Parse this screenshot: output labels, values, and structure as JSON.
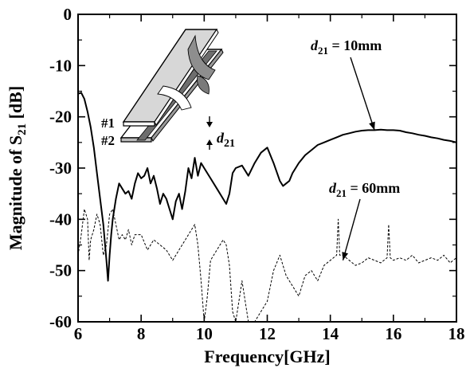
{
  "chart_data": {
    "type": "line",
    "xlabel": "Frequency[GHz]",
    "ylabel_parts": {
      "main": "Magnitude of S",
      "sub": "21",
      "unit": " [dB]"
    },
    "xlim": [
      6,
      18
    ],
    "ylim": [
      -60,
      0
    ],
    "xticks": [
      6,
      8,
      10,
      12,
      14,
      16,
      18
    ],
    "yticks": [
      0,
      -10,
      -20,
      -30,
      -40,
      -50,
      -60
    ],
    "grid": false,
    "annotations": [
      {
        "var": "d",
        "sub": "21",
        "text": " = 10mm",
        "arrow_to": [
          15.4,
          -22.6
        ]
      },
      {
        "var": "d",
        "sub": "21",
        "text": " = 60mm",
        "arrow_to": [
          14.4,
          -48.0
        ]
      }
    ],
    "inset": {
      "labels": [
        "#1",
        "#2"
      ],
      "dimension": {
        "var": "d",
        "sub": "21"
      }
    },
    "series": [
      {
        "style": "solid",
        "x": [
          6.0,
          6.1,
          6.2,
          6.3,
          6.4,
          6.5,
          6.6,
          6.7,
          6.8,
          6.9,
          6.95,
          7.0,
          7.05,
          7.1,
          7.2,
          7.3,
          7.4,
          7.5,
          7.6,
          7.7,
          7.8,
          7.9,
          8.0,
          8.1,
          8.2,
          8.3,
          8.4,
          8.5,
          8.6,
          8.7,
          8.8,
          8.9,
          9.0,
          9.1,
          9.2,
          9.3,
          9.4,
          9.5,
          9.6,
          9.7,
          9.8,
          9.9,
          10.0,
          10.2,
          10.4,
          10.6,
          10.7,
          10.8,
          10.9,
          11.0,
          11.2,
          11.4,
          11.6,
          11.8,
          12.0,
          12.2,
          12.4,
          12.5,
          12.6,
          12.7,
          12.8,
          13.0,
          13.2,
          13.4,
          13.6,
          13.8,
          14.0,
          14.2,
          14.4,
          14.6,
          14.8,
          15.0,
          15.2,
          15.4,
          15.6,
          15.8,
          16.0,
          16.2,
          16.4,
          16.6,
          16.8,
          17.0,
          17.2,
          17.4,
          17.6,
          17.8,
          18.0
        ],
        "y": [
          -15.5,
          -15.3,
          -16.5,
          -19.0,
          -22.0,
          -26.0,
          -31.0,
          -36.0,
          -41.0,
          -48.0,
          -52.0,
          -47.0,
          -43.0,
          -40.0,
          -36.0,
          -33.0,
          -34.0,
          -35.0,
          -34.5,
          -36.0,
          -33.0,
          -31.0,
          -32.0,
          -31.5,
          -30.0,
          -33.0,
          -31.5,
          -34.0,
          -37.0,
          -35.0,
          -36.0,
          -38.0,
          -40.0,
          -36.5,
          -35.0,
          -38.0,
          -34.5,
          -30.0,
          -32.0,
          -28.0,
          -31.5,
          -29.0,
          -30.0,
          -32.0,
          -34.0,
          -36.0,
          -37.0,
          -35.0,
          -31.0,
          -30.0,
          -29.5,
          -31.5,
          -29.0,
          -27.0,
          -26.0,
          -29.0,
          -32.5,
          -33.5,
          -33.0,
          -32.5,
          -31.0,
          -29.0,
          -27.5,
          -26.5,
          -25.5,
          -25.0,
          -24.5,
          -24.0,
          -23.5,
          -23.2,
          -22.9,
          -22.7,
          -22.6,
          -22.6,
          -22.5,
          -22.6,
          -22.6,
          -22.7,
          -23.0,
          -23.2,
          -23.5,
          -23.7,
          -24.0,
          -24.2,
          -24.5,
          -24.7,
          -25.0
        ]
      },
      {
        "style": "dashed",
        "x": [
          6.0,
          6.1,
          6.2,
          6.3,
          6.35,
          6.4,
          6.5,
          6.6,
          6.7,
          6.8,
          6.9,
          7.0,
          7.1,
          7.2,
          7.3,
          7.4,
          7.5,
          7.6,
          7.7,
          7.8,
          7.9,
          8.0,
          8.2,
          8.4,
          8.6,
          8.8,
          9.0,
          9.2,
          9.4,
          9.6,
          9.7,
          9.8,
          9.9,
          10.0,
          10.1,
          10.2,
          10.4,
          10.6,
          10.7,
          10.8,
          10.9,
          11.0,
          11.1,
          11.2,
          11.4,
          11.6,
          11.8,
          12.0,
          12.2,
          12.4,
          12.6,
          12.8,
          13.0,
          13.2,
          13.4,
          13.6,
          13.8,
          14.0,
          14.2,
          14.25,
          14.3,
          14.4,
          14.6,
          14.8,
          15.0,
          15.2,
          15.4,
          15.6,
          15.8,
          15.85,
          15.9,
          16.0,
          16.2,
          16.4,
          16.6,
          16.8,
          17.0,
          17.2,
          17.4,
          17.6,
          17.8,
          18.0
        ],
        "y": [
          -47.0,
          -43.0,
          -38.0,
          -40.0,
          -48.0,
          -44.0,
          -42.0,
          -39.0,
          -41.0,
          -47.0,
          -45.0,
          -39.0,
          -38.0,
          -41.0,
          -44.0,
          -43.0,
          -44.0,
          -42.0,
          -45.0,
          -43.0,
          -43.0,
          -43.0,
          -46.0,
          -44.0,
          -45.0,
          -46.0,
          -48.0,
          -46.0,
          -44.0,
          -42.0,
          -41.0,
          -45.0,
          -52.0,
          -60.0,
          -55.0,
          -48.0,
          -46.0,
          -44.0,
          -45.0,
          -49.0,
          -58.0,
          -60.0,
          -56.0,
          -52.0,
          -60.0,
          -60.0,
          -58.0,
          -56.0,
          -50.0,
          -47.0,
          -51.0,
          -53.0,
          -55.0,
          -51.0,
          -50.0,
          -52.0,
          -49.0,
          -48.0,
          -47.0,
          -40.0,
          -47.0,
          -47.0,
          -48.0,
          -49.0,
          -48.5,
          -47.5,
          -48.0,
          -48.5,
          -47.5,
          -41.0,
          -47.5,
          -48.0,
          -47.5,
          -48.0,
          -47.0,
          -48.5,
          -48.0,
          -47.5,
          -48.0,
          -47.0,
          -48.5,
          -47.5
        ]
      }
    ]
  }
}
